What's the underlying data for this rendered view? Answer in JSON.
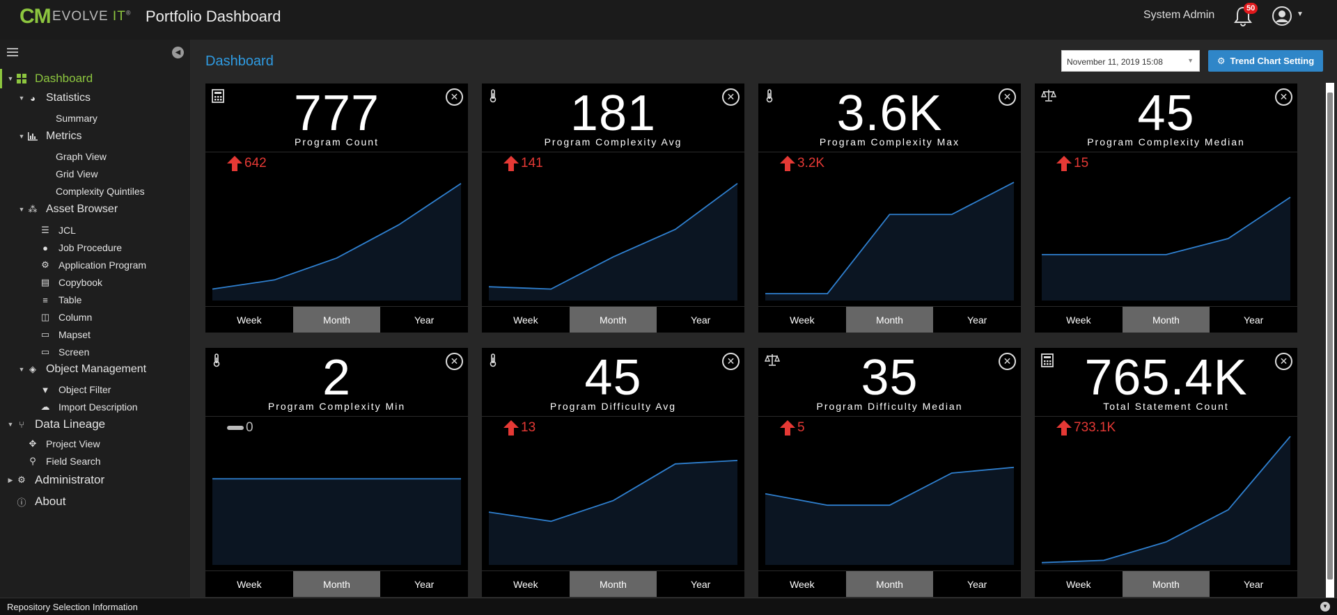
{
  "header": {
    "logo_cm": "CM",
    "logo_evolve": "EVOLVE",
    "logo_it": "IT",
    "logo_reg": "®",
    "title": "Portfolio Dashboard",
    "user": "System Admin",
    "notifications": "50"
  },
  "sidebar": {
    "items": [
      {
        "label": "Dashboard",
        "icon": "dashboard-grid-icon"
      },
      {
        "label": "Statistics",
        "icon": "pie-chart-icon"
      },
      {
        "label": "Summary"
      },
      {
        "label": "Metrics",
        "icon": "bar-chart-icon"
      },
      {
        "label": "Graph View"
      },
      {
        "label": "Grid View"
      },
      {
        "label": "Complexity Quintiles"
      },
      {
        "label": "Asset Browser",
        "icon": "cubes-icon"
      },
      {
        "label": "JCL",
        "icon": "list-icon"
      },
      {
        "label": "Job Procedure",
        "icon": "circle-icon"
      },
      {
        "label": "Application Program",
        "icon": "gear-icon"
      },
      {
        "label": "Copybook",
        "icon": "book-icon"
      },
      {
        "label": "Table",
        "icon": "database-icon"
      },
      {
        "label": "Column",
        "icon": "columns-icon"
      },
      {
        "label": "Mapset",
        "icon": "monitor-icon"
      },
      {
        "label": "Screen",
        "icon": "monitor-icon"
      },
      {
        "label": "Object Management",
        "icon": "cube-icon"
      },
      {
        "label": "Object Filter",
        "icon": "filter-icon"
      },
      {
        "label": "Import Description",
        "icon": "cloud-upload-icon"
      },
      {
        "label": "Data Lineage",
        "icon": "branch-icon"
      },
      {
        "label": "Project View",
        "icon": "arrows-icon"
      },
      {
        "label": "Field Search",
        "icon": "search-icon"
      },
      {
        "label": "Administrator",
        "icon": "gears-icon"
      },
      {
        "label": "About",
        "icon": "info-icon"
      }
    ]
  },
  "toolbar": {
    "page_title": "Dashboard",
    "date": "November 11, 2019 15:08",
    "trend_button": "Trend Chart Setting"
  },
  "tabs": {
    "week": "Week",
    "month": "Month",
    "year": "Year"
  },
  "cards": [
    {
      "value": "777",
      "label": "Program Count",
      "delta": "642",
      "trend": "up",
      "icon": "calculator-icon",
      "series": [
        10,
        18,
        37,
        66,
        102
      ]
    },
    {
      "value": "181",
      "label": "Program Complexity Avg",
      "delta": "141",
      "trend": "up",
      "icon": "thermometer-icon",
      "series": [
        12,
        10,
        38,
        62,
        102
      ]
    },
    {
      "value": "3.6K",
      "label": "Program Complexity Max",
      "delta": "3.2K",
      "trend": "up",
      "icon": "thermometer-icon",
      "series": [
        6,
        6,
        75,
        75,
        103
      ]
    },
    {
      "value": "45",
      "label": "Program Complexity Median",
      "delta": "15",
      "trend": "up",
      "icon": "balance-scale-icon",
      "series": [
        40,
        40,
        40,
        54,
        90
      ]
    },
    {
      "value": "2",
      "label": "Program Complexity Min",
      "delta": "0",
      "trend": "flat",
      "icon": "thermometer-icon",
      "series": [
        75,
        75,
        75,
        75,
        75
      ]
    },
    {
      "value": "45",
      "label": "Program Difficulty Avg",
      "delta": "13",
      "trend": "up",
      "icon": "thermometer-icon",
      "series": [
        46,
        38,
        56,
        88,
        91
      ]
    },
    {
      "value": "35",
      "label": "Program Difficulty Median",
      "delta": "5",
      "trend": "up",
      "icon": "balance-scale-icon",
      "series": [
        62,
        52,
        52,
        80,
        85
      ]
    },
    {
      "value": "765.4K",
      "label": "Total Statement Count",
      "delta": "733.1K",
      "trend": "up",
      "icon": "calculator-icon",
      "series": [
        2,
        4,
        20,
        48,
        112
      ]
    }
  ],
  "footer": {
    "text": "Repository Selection Information"
  },
  "colors": {
    "accent": "#8dc63f",
    "link": "#2f9be2",
    "up": "#e53935",
    "line": "#2f80d0",
    "fill": "#0b1522"
  }
}
